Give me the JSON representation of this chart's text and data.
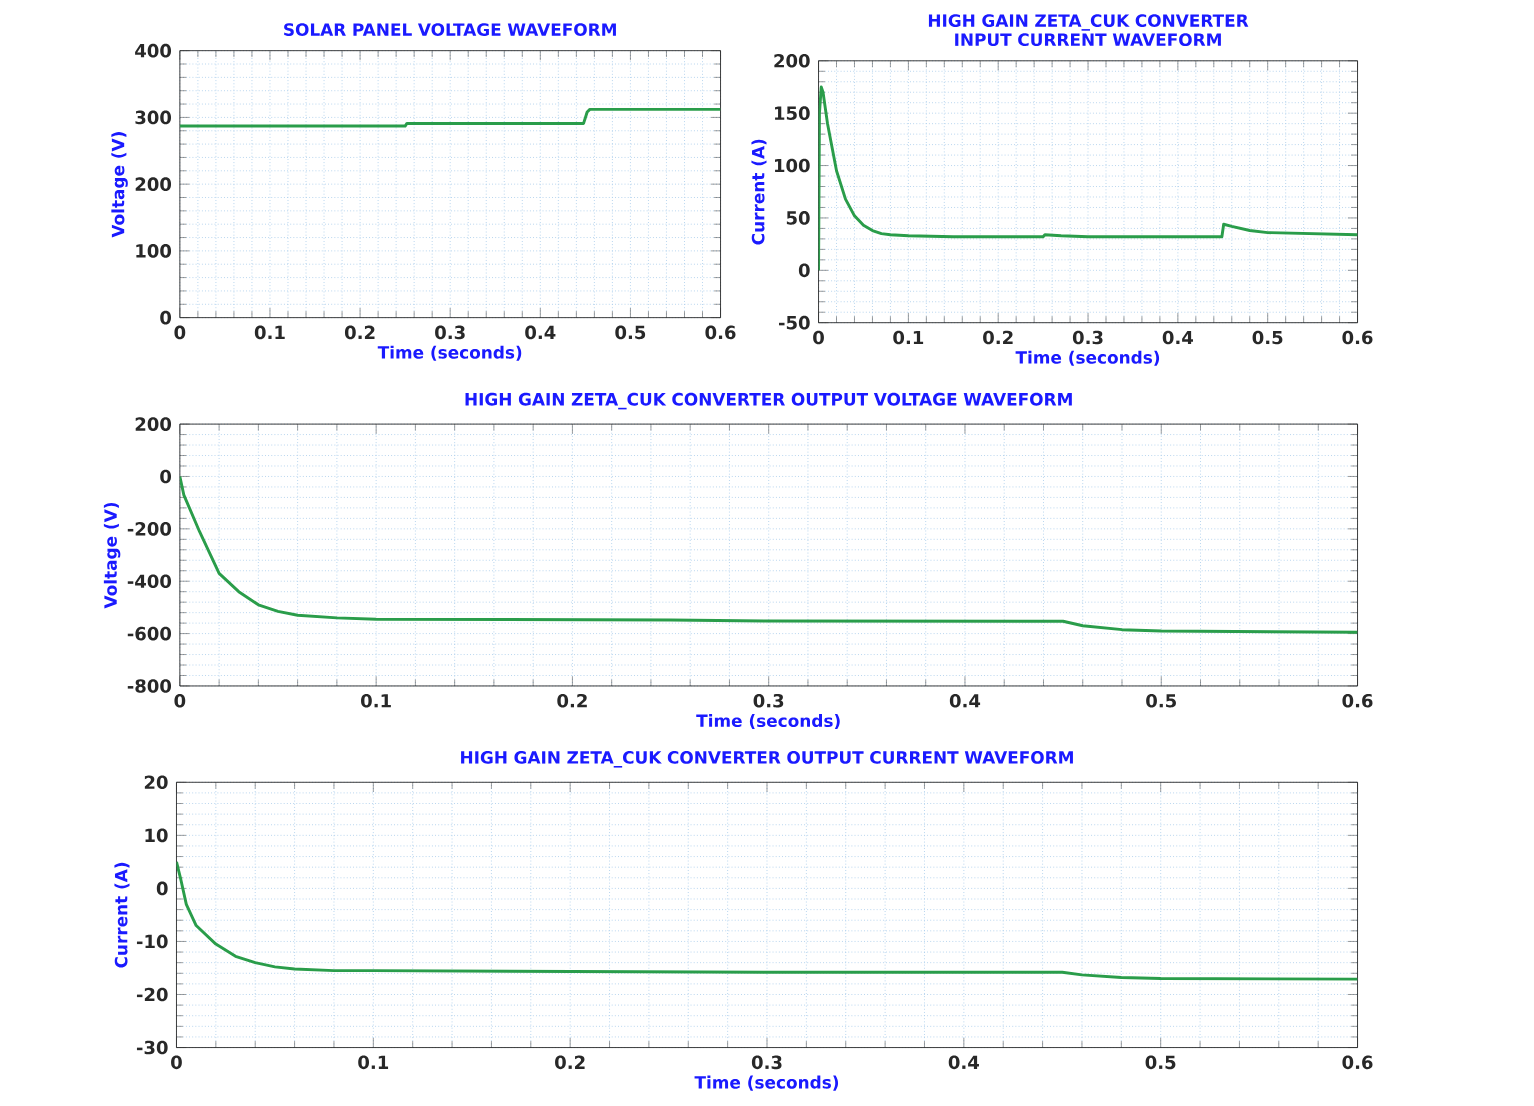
{
  "chart_data": [
    {
      "type": "line",
      "title": "SOLAR PANEL VOLTAGE WAVEFORM",
      "xlabel": "Time (seconds)",
      "ylabel": "Voltage (V)",
      "x": [
        0,
        0.25,
        0.252,
        0.448,
        0.452,
        0.455,
        0.6
      ],
      "series": [
        {
          "color": "#2a9d4a",
          "values": [
            287,
            287,
            291,
            291,
            308,
            312,
            312
          ]
        }
      ],
      "xlim": [
        0,
        0.6
      ],
      "ylim": [
        0,
        400
      ],
      "xticks": [
        0,
        0.1,
        0.2,
        0.3,
        0.4,
        0.5,
        0.6
      ],
      "yticks": [
        0,
        100,
        200,
        300,
        400
      ],
      "grid": true
    },
    {
      "type": "line",
      "title": "HIGH GAIN ZETA_CUK CONVERTER INPUT CURRENT WAVEFORM",
      "xlabel": "Time (seconds)",
      "ylabel": "Current (A)",
      "x": [
        0,
        0.001,
        0.003,
        0.005,
        0.01,
        0.02,
        0.03,
        0.04,
        0.05,
        0.06,
        0.07,
        0.08,
        0.1,
        0.15,
        0.25,
        0.252,
        0.27,
        0.3,
        0.449,
        0.451,
        0.46,
        0.48,
        0.5,
        0.55,
        0.6
      ],
      "series": [
        {
          "color": "#2a9d4a",
          "values": [
            0,
            150,
            175,
            170,
            140,
            95,
            68,
            52,
            43,
            38,
            35,
            34,
            33,
            32,
            32,
            34,
            33,
            32,
            32,
            44,
            42,
            38,
            36,
            35,
            34
          ]
        }
      ],
      "xlim": [
        0,
        0.6
      ],
      "ylim": [
        -50,
        200
      ],
      "xticks": [
        0,
        0.1,
        0.2,
        0.3,
        0.4,
        0.5,
        0.6
      ],
      "yticks": [
        -50,
        0,
        50,
        100,
        150,
        200
      ],
      "grid": true
    },
    {
      "type": "line",
      "title": "HIGH GAIN ZETA_CUK CONVERTER OUTPUT VOLTAGE WAVEFORM",
      "xlabel": "Time (seconds)",
      "ylabel": "Voltage (V)",
      "x": [
        0,
        0.002,
        0.01,
        0.02,
        0.03,
        0.04,
        0.05,
        0.06,
        0.08,
        0.1,
        0.25,
        0.3,
        0.45,
        0.46,
        0.48,
        0.5,
        0.6
      ],
      "series": [
        {
          "color": "#2a9d4a",
          "values": [
            0,
            -70,
            -210,
            -370,
            -440,
            -490,
            -515,
            -530,
            -540,
            -545,
            -548,
            -552,
            -553,
            -570,
            -585,
            -590,
            -595
          ]
        }
      ],
      "xlim": [
        0,
        0.6
      ],
      "ylim": [
        -800,
        200
      ],
      "xticks": [
        0,
        0.1,
        0.2,
        0.3,
        0.4,
        0.5,
        0.6
      ],
      "yticks": [
        -800,
        -600,
        -400,
        -200,
        0,
        200
      ],
      "grid": true
    },
    {
      "type": "line",
      "title": "HIGH GAIN ZETA_CUK CONVERTER OUTPUT CURRENT WAVEFORM",
      "xlabel": "Time (seconds)",
      "ylabel": "Current (A)",
      "x": [
        0,
        0.002,
        0.005,
        0.01,
        0.02,
        0.03,
        0.04,
        0.05,
        0.06,
        0.08,
        0.1,
        0.3,
        0.45,
        0.46,
        0.48,
        0.5,
        0.6
      ],
      "series": [
        {
          "color": "#2a9d4a",
          "values": [
            5,
            2,
            -3,
            -7,
            -10.5,
            -12.8,
            -14,
            -14.8,
            -15.2,
            -15.5,
            -15.5,
            -15.8,
            -15.8,
            -16.3,
            -16.8,
            -17,
            -17.1
          ]
        }
      ],
      "xlim": [
        0,
        0.6
      ],
      "ylim": [
        -30,
        20
      ],
      "xticks": [
        0,
        0.1,
        0.2,
        0.3,
        0.4,
        0.5,
        0.6
      ],
      "yticks": [
        -30,
        -20,
        -10,
        0,
        10,
        20
      ],
      "grid": true
    }
  ]
}
